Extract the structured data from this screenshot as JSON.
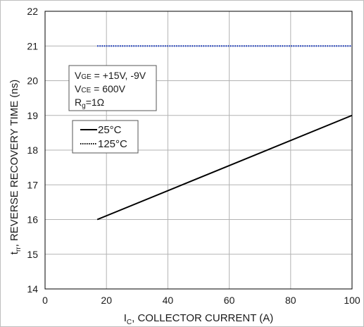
{
  "chart_data": {
    "type": "line",
    "xlabel_main": "I",
    "xlabel_sub": "C",
    "xlabel_rest": ", COLLECTOR CURRENT (A)",
    "ylabel_main": "t",
    "ylabel_sub": "rr",
    "ylabel_rest": ", REVERSE RECOVERY TIME (ns)",
    "xlim": [
      0,
      100
    ],
    "ylim": [
      14,
      22
    ],
    "x_ticks": [
      "0",
      "20",
      "40",
      "60",
      "80",
      "100"
    ],
    "y_ticks": [
      "14",
      "15",
      "16",
      "17",
      "18",
      "19",
      "20",
      "21",
      "22"
    ],
    "grid": true,
    "series": [
      {
        "name": "25°C",
        "color": "#000000",
        "style": "solid",
        "x": [
          17,
          100
        ],
        "y": [
          16,
          19
        ]
      },
      {
        "name": "125°C",
        "color": "#1f3fbf",
        "style": "dotted",
        "x": [
          17,
          100
        ],
        "y": [
          21,
          21
        ]
      }
    ],
    "conditions": {
      "vge_main": "V",
      "vge_sub": "GE",
      "vge_rest": " = +15V, -9V",
      "vce_main": "V",
      "vce_sub": "CE",
      "vce_rest": " = 600V",
      "rg_main": "R",
      "rg_sub": "g",
      "rg_rest": "=1Ω"
    },
    "legend": {
      "placement": "upper-left",
      "items": [
        "25°C",
        "125°C"
      ]
    }
  }
}
